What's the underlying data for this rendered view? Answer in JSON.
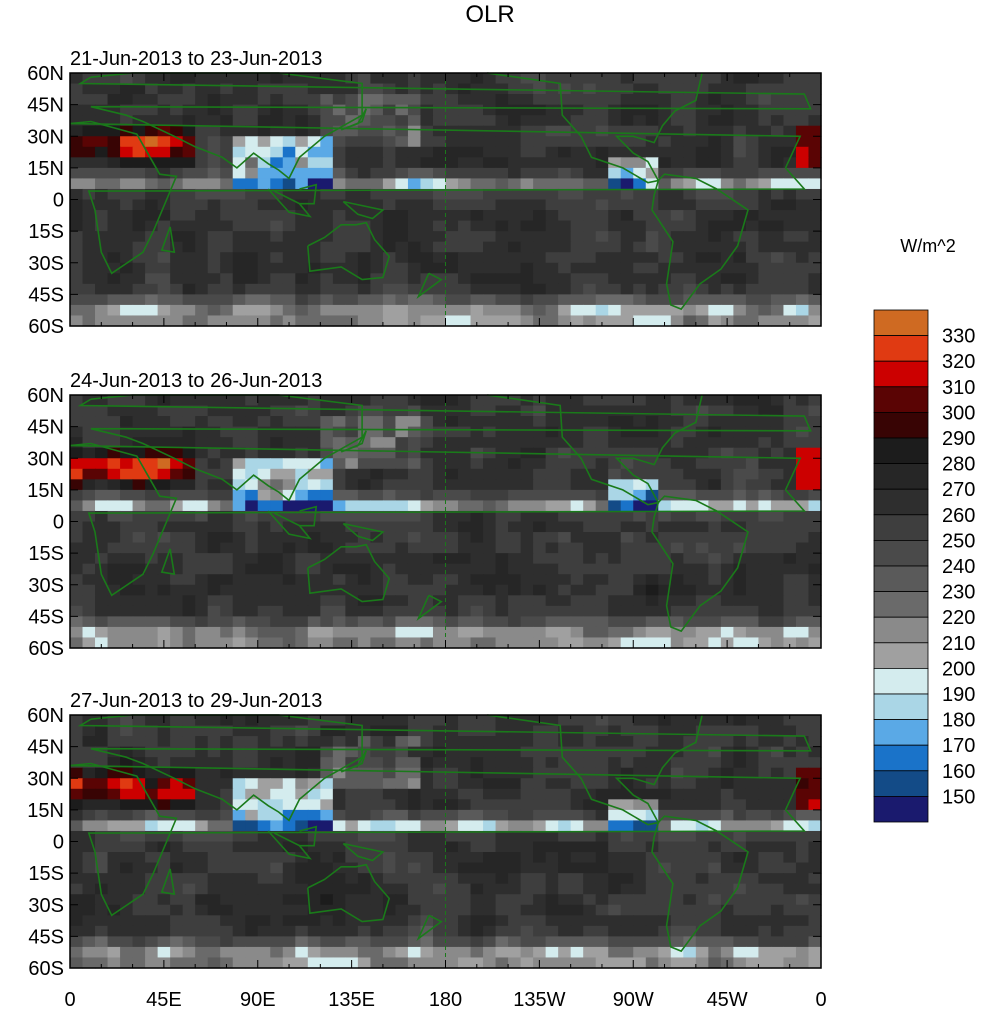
{
  "chart_data": {
    "type": "heatmap",
    "title": "OLR",
    "units_label": "W/m^2",
    "x_ticks": [
      "0",
      "45E",
      "90E",
      "135E",
      "180",
      "135W",
      "90W",
      "45W",
      "0"
    ],
    "x_tick_values": [
      0,
      45,
      90,
      135,
      180,
      225,
      270,
      315,
      360
    ],
    "y_ticks": [
      "60N",
      "45N",
      "30N",
      "15N",
      "0",
      "15S",
      "30S",
      "45S",
      "60S"
    ],
    "y_tick_values": [
      60,
      45,
      30,
      15,
      0,
      -15,
      -30,
      -45,
      -60
    ],
    "xlim": [
      0,
      360
    ],
    "ylim": [
      -60,
      60
    ],
    "panels": [
      {
        "subtitle": "21-Jun-2013 to 23-Jun-2013",
        "variant": 1
      },
      {
        "subtitle": "24-Jun-2013 to 26-Jun-2013",
        "variant": 2
      },
      {
        "subtitle": "27-Jun-2013 to 29-Jun-2013",
        "variant": 3
      }
    ],
    "levels": [
      150,
      160,
      170,
      180,
      190,
      200,
      210,
      220,
      230,
      240,
      250,
      260,
      270,
      280,
      290,
      300,
      310,
      320,
      330
    ],
    "level_labels": [
      "330",
      "320",
      "310",
      "300",
      "290",
      "280",
      "270",
      "260",
      "250",
      "240",
      "230",
      "220",
      "210",
      "200",
      "190",
      "180",
      "170",
      "160",
      "150"
    ],
    "colors": [
      "#1a1a6e",
      "#134b87",
      "#1a73c9",
      "#5aa9e6",
      "#aad6e6",
      "#d4ecee",
      "#a0a0a0",
      "#8a8a8a",
      "#6a6a6a",
      "#5a5a5a",
      "#4a4a4a",
      "#3e3e3e",
      "#2e2e2e",
      "#262626",
      "#1c1c1c",
      "#380404",
      "#5a0404",
      "#cc0000",
      "#e03a12",
      "#cf6a22"
    ],
    "coastline_color": "#1a7a1a"
  }
}
